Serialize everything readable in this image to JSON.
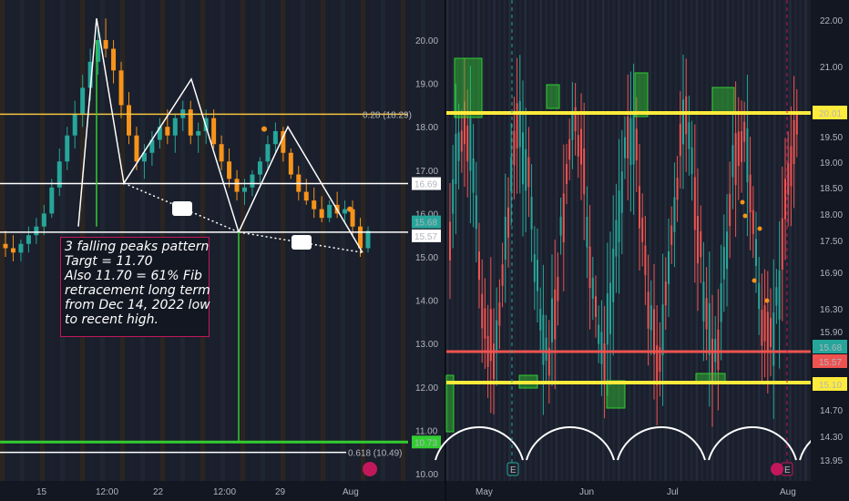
{
  "chart_data": [
    {
      "type": "candlestick",
      "title": "",
      "x_ticks": [
        "15",
        "12:00",
        "22",
        "12:00",
        "29",
        "Aug"
      ],
      "y_ticks": [
        10.0,
        11.0,
        12.0,
        13.0,
        14.0,
        15.0,
        16.0,
        17.0,
        18.0,
        19.0,
        20.0
      ],
      "ylim": [
        9.75,
        21.2
      ],
      "candles": [
        {
          "o": 15.3,
          "h": 15.6,
          "l": 15.0,
          "c": 15.2
        },
        {
          "o": 15.2,
          "h": 15.5,
          "l": 14.9,
          "c": 15.1
        },
        {
          "o": 15.1,
          "h": 15.4,
          "l": 14.9,
          "c": 15.3
        },
        {
          "o": 15.3,
          "h": 15.7,
          "l": 15.1,
          "c": 15.5
        },
        {
          "o": 15.5,
          "h": 15.9,
          "l": 15.3,
          "c": 15.7
        },
        {
          "o": 15.7,
          "h": 16.2,
          "l": 15.5,
          "c": 16.0
        },
        {
          "o": 16.0,
          "h": 16.8,
          "l": 15.9,
          "c": 16.6
        },
        {
          "o": 16.6,
          "h": 17.5,
          "l": 16.4,
          "c": 17.2
        },
        {
          "o": 17.2,
          "h": 18.0,
          "l": 17.0,
          "c": 17.8
        },
        {
          "o": 17.8,
          "h": 18.6,
          "l": 17.5,
          "c": 18.3
        },
        {
          "o": 18.3,
          "h": 19.2,
          "l": 18.0,
          "c": 18.9
        },
        {
          "o": 18.9,
          "h": 19.8,
          "l": 18.6,
          "c": 19.5
        },
        {
          "o": 19.5,
          "h": 20.3,
          "l": 19.2,
          "c": 20.0
        },
        {
          "o": 20.0,
          "h": 20.5,
          "l": 19.6,
          "c": 19.8
        },
        {
          "o": 19.8,
          "h": 20.0,
          "l": 19.0,
          "c": 19.3
        },
        {
          "o": 19.3,
          "h": 19.5,
          "l": 18.2,
          "c": 18.5
        },
        {
          "o": 18.5,
          "h": 18.8,
          "l": 17.6,
          "c": 17.8
        },
        {
          "o": 17.8,
          "h": 18.0,
          "l": 17.0,
          "c": 17.2
        },
        {
          "o": 17.2,
          "h": 17.6,
          "l": 16.8,
          "c": 17.4
        },
        {
          "o": 17.4,
          "h": 17.9,
          "l": 17.1,
          "c": 17.7
        },
        {
          "o": 17.7,
          "h": 18.2,
          "l": 17.5,
          "c": 18.0
        },
        {
          "o": 18.0,
          "h": 18.4,
          "l": 17.6,
          "c": 17.8
        },
        {
          "o": 17.8,
          "h": 18.3,
          "l": 17.4,
          "c": 18.2
        },
        {
          "o": 18.2,
          "h": 18.6,
          "l": 17.9,
          "c": 18.4
        },
        {
          "o": 18.4,
          "h": 18.6,
          "l": 17.6,
          "c": 17.8
        },
        {
          "o": 17.8,
          "h": 18.1,
          "l": 17.4,
          "c": 17.9
        },
        {
          "o": 17.9,
          "h": 18.4,
          "l": 17.6,
          "c": 18.2
        },
        {
          "o": 18.2,
          "h": 18.4,
          "l": 17.5,
          "c": 17.6
        },
        {
          "o": 17.6,
          "h": 17.8,
          "l": 17.0,
          "c": 17.2
        },
        {
          "o": 17.2,
          "h": 17.5,
          "l": 16.6,
          "c": 16.8
        },
        {
          "o": 16.8,
          "h": 17.0,
          "l": 16.3,
          "c": 16.5
        },
        {
          "o": 16.5,
          "h": 16.8,
          "l": 16.2,
          "c": 16.6
        },
        {
          "o": 16.6,
          "h": 17.0,
          "l": 16.4,
          "c": 16.9
        },
        {
          "o": 16.9,
          "h": 17.3,
          "l": 16.7,
          "c": 17.2
        },
        {
          "o": 17.2,
          "h": 17.8,
          "l": 17.0,
          "c": 17.6
        },
        {
          "o": 17.6,
          "h": 18.1,
          "l": 17.4,
          "c": 17.9
        },
        {
          "o": 17.9,
          "h": 18.0,
          "l": 17.2,
          "c": 17.4
        },
        {
          "o": 17.4,
          "h": 17.5,
          "l": 16.8,
          "c": 16.9
        },
        {
          "o": 16.9,
          "h": 17.1,
          "l": 16.3,
          "c": 16.5
        },
        {
          "o": 16.5,
          "h": 16.8,
          "l": 16.2,
          "c": 16.3
        },
        {
          "o": 16.3,
          "h": 16.6,
          "l": 15.9,
          "c": 16.1
        },
        {
          "o": 16.1,
          "h": 16.4,
          "l": 15.8,
          "c": 15.9
        },
        {
          "o": 15.9,
          "h": 16.3,
          "l": 15.8,
          "c": 16.2
        },
        {
          "o": 16.2,
          "h": 16.5,
          "l": 15.9,
          "c": 16.0
        },
        {
          "o": 16.0,
          "h": 16.3,
          "l": 15.8,
          "c": 16.1
        },
        {
          "o": 16.1,
          "h": 16.3,
          "l": 15.5,
          "c": 15.7
        },
        {
          "o": 15.7,
          "h": 15.9,
          "l": 15.0,
          "c": 15.2
        },
        {
          "o": 15.2,
          "h": 15.7,
          "l": 15.1,
          "c": 15.6
        }
      ],
      "annotation": {
        "lines": [
          "3 falling peaks pattern",
          "Targt = 11.70",
          "Also 11.70 = 61% Fib",
          "retracement long term",
          "from Dec 14, 2022 low",
          "to recent high."
        ]
      },
      "levels": [
        {
          "label": "0.28 (18.29)",
          "value": 18.29,
          "color": "#f5c542"
        },
        {
          "label": "16.69",
          "value": 16.69,
          "color": "#ffffff"
        },
        {
          "label": "15.57",
          "value": 15.57,
          "color": "#ffffff"
        },
        {
          "label": "15.68",
          "value": 15.68,
          "color": "#26a69a"
        },
        {
          "label": "10.73",
          "value": 10.73,
          "color": "#32cd32"
        },
        {
          "label": "0.618 (10.49)",
          "value": 10.49,
          "color": "#ffffff"
        }
      ]
    },
    {
      "type": "candlestick",
      "title": "",
      "x_ticks": [
        "May",
        "Jun",
        "Jul",
        "Aug"
      ],
      "y_ticks": [
        22.0,
        21.0,
        20.01,
        19.5,
        19.0,
        18.5,
        18.0,
        17.5,
        16.9,
        16.3,
        15.9,
        15.68,
        15.57,
        15.1,
        14.7,
        14.3,
        13.95
      ],
      "levels": [
        {
          "label": "20.01",
          "value": 20.01,
          "color": "#ffeb3b"
        },
        {
          "label": "15.68",
          "value": 15.68,
          "color": "#26a69a"
        },
        {
          "label": "15.57",
          "value": 15.57,
          "color": "#ef5350"
        },
        {
          "label": "15.10",
          "value": 15.1,
          "color": "#ffeb3b"
        }
      ],
      "event_markers": [
        "E",
        "E"
      ]
    }
  ]
}
